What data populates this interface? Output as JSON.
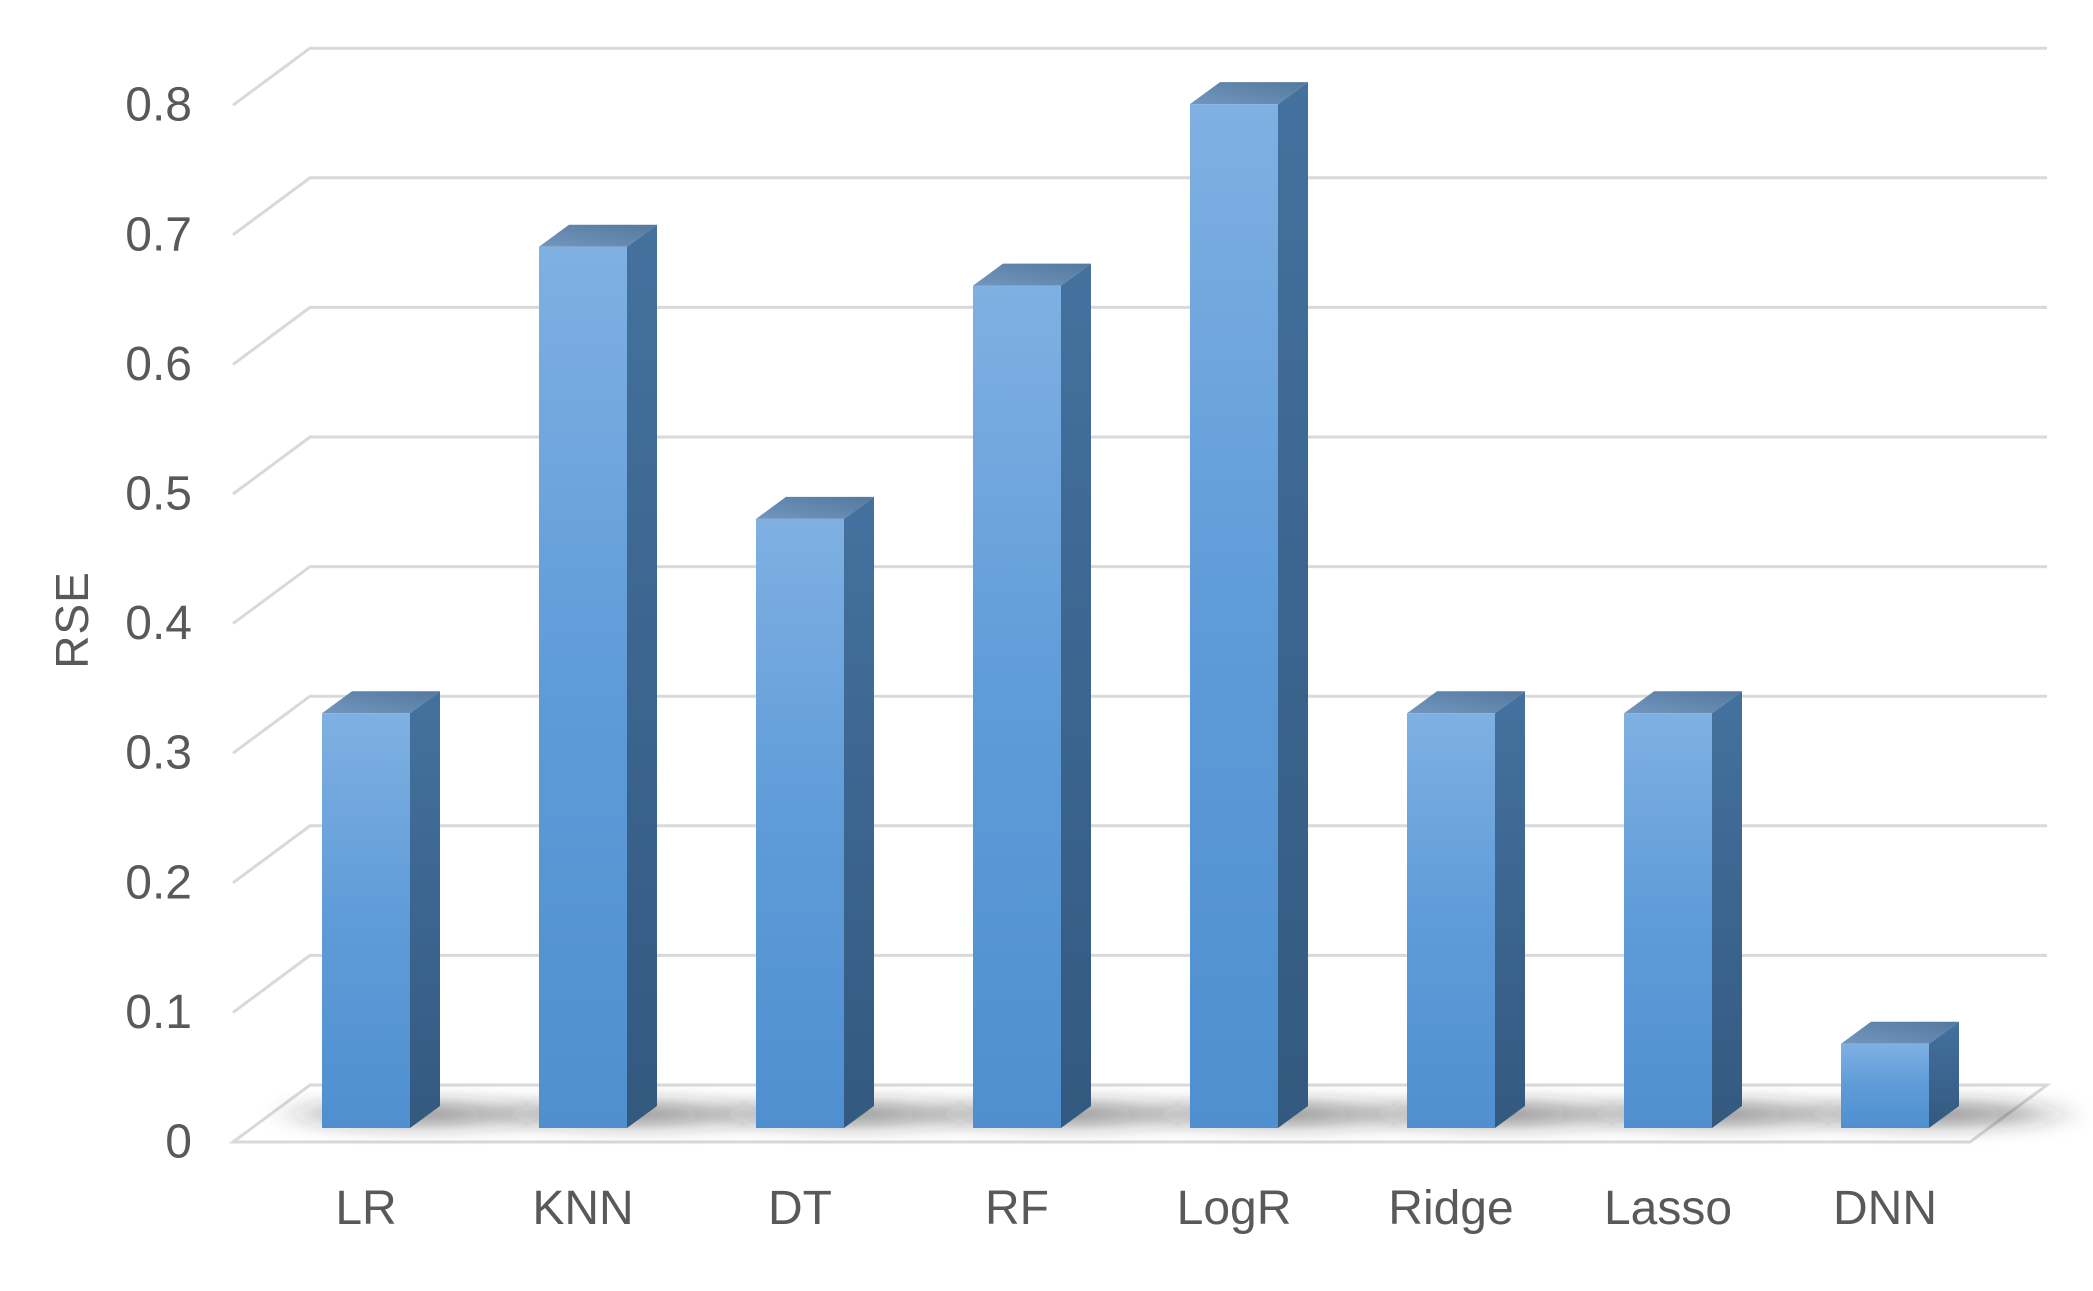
{
  "chart_data": {
    "type": "bar",
    "style": "3d-column",
    "title": "",
    "xlabel": "",
    "ylabel": "RSE",
    "categories": [
      "LR",
      "KNN",
      "DT",
      "RF",
      "LogR",
      "Ridge",
      "Lasso",
      "DNN"
    ],
    "values": [
      0.32,
      0.68,
      0.47,
      0.65,
      0.79,
      0.32,
      0.32,
      0.065
    ],
    "series": [
      {
        "name": "RSE",
        "values": [
          0.32,
          0.68,
          0.47,
          0.65,
          0.79,
          0.32,
          0.32,
          0.065
        ]
      }
    ],
    "ylim": [
      0,
      0.8
    ],
    "yticks": [
      0,
      0.1,
      0.2,
      0.3,
      0.4,
      0.5,
      0.6,
      0.7,
      0.8
    ],
    "ytick_labels": [
      "0",
      "0.1",
      "0.2",
      "0.3",
      "0.4",
      "0.5",
      "0.6",
      "0.7",
      "0.8"
    ],
    "grid": true,
    "legend": "none",
    "colors": {
      "bar_front_top": "#7FB0E2",
      "bar_front_mid": "#5E9BD8",
      "bar_front_bottom": "#4F8FD0",
      "bar_side_top": "#44719F",
      "bar_side_bottom": "#33597F",
      "bar_top_light": "#7296BD",
      "bar_top_dark": "#54799F",
      "gridline": "#D9D9D9",
      "axis_text": "#595959",
      "shadow": "#282828",
      "background": "#FFFFFF"
    }
  }
}
